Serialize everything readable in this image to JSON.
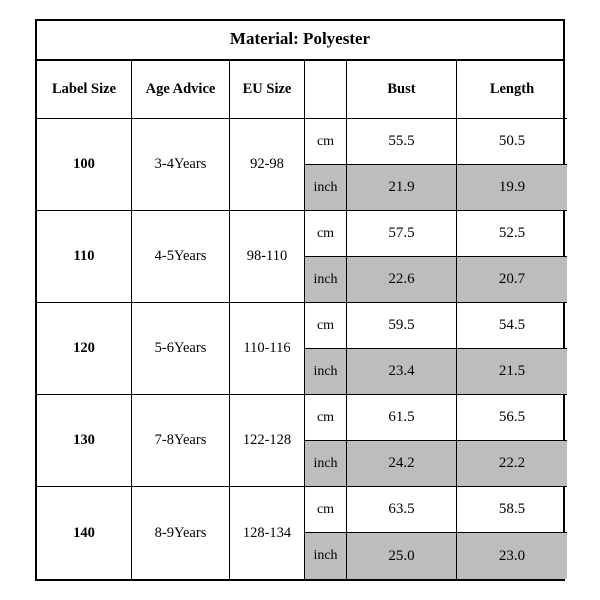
{
  "title": "Material: Polyester",
  "headers": {
    "label_size": "Label Size",
    "age_advice": "Age Advice",
    "eu_size": "EU Size",
    "bust": "Bust",
    "length": "Length"
  },
  "unit_labels": {
    "cm": "cm",
    "inch": "inch"
  },
  "colors": {
    "shade": "#bdbdbd",
    "border": "#000000",
    "bg": "#ffffff"
  },
  "rows": [
    {
      "label_size": "100",
      "age_advice": "3-4Years",
      "eu_size": "92-98",
      "bust_cm": "55.5",
      "bust_in": "21.9",
      "length_cm": "50.5",
      "length_in": "19.9"
    },
    {
      "label_size": "110",
      "age_advice": "4-5Years",
      "eu_size": "98-110",
      "bust_cm": "57.5",
      "bust_in": "22.6",
      "length_cm": "52.5",
      "length_in": "20.7"
    },
    {
      "label_size": "120",
      "age_advice": "5-6Years",
      "eu_size": "110-116",
      "bust_cm": "59.5",
      "bust_in": "23.4",
      "length_cm": "54.5",
      "length_in": "21.5"
    },
    {
      "label_size": "130",
      "age_advice": "7-8Years",
      "eu_size": "122-128",
      "bust_cm": "61.5",
      "bust_in": "24.2",
      "length_cm": "56.5",
      "length_in": "22.2"
    },
    {
      "label_size": "140",
      "age_advice": "8-9Years",
      "eu_size": "128-134",
      "bust_cm": "63.5",
      "bust_in": "25.0",
      "length_cm": "58.5",
      "length_in": "23.0"
    }
  ]
}
